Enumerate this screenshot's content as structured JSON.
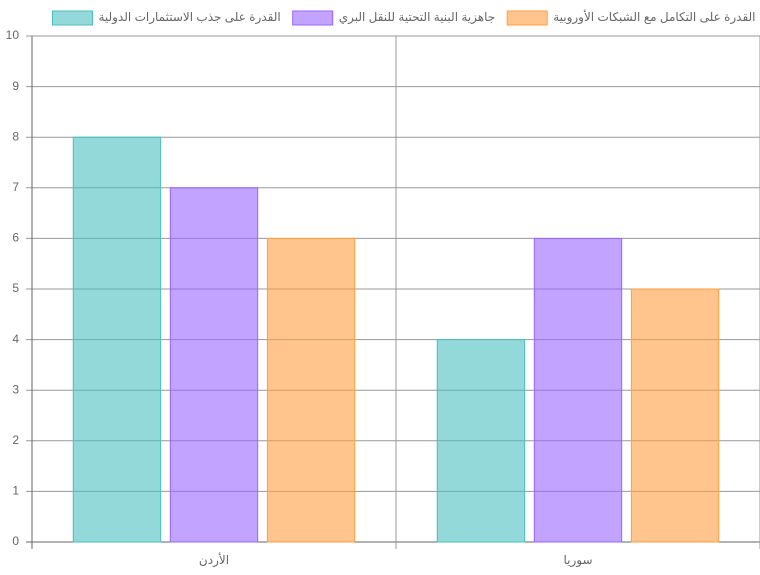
{
  "chart_data": {
    "type": "bar",
    "categories": [
      "الأردن",
      "سوريا"
    ],
    "series": [
      {
        "name": "القدرة على جذب الاستثمارات الدولية",
        "color": "#4bc0c0",
        "values": [
          8,
          4
        ]
      },
      {
        "name": "جاهزية البنية التحتية للنقل البري",
        "color": "#9966ff",
        "values": [
          7,
          6
        ]
      },
      {
        "name": "القدرة على التكامل مع الشبكات الأوروبية",
        "color": "#ff9f40",
        "values": [
          6,
          5
        ]
      }
    ],
    "ylim": [
      0,
      10
    ],
    "yticks": [
      0,
      1,
      2,
      3,
      4,
      5,
      6,
      7,
      8,
      9,
      10
    ],
    "grid": true,
    "legend": "top"
  }
}
